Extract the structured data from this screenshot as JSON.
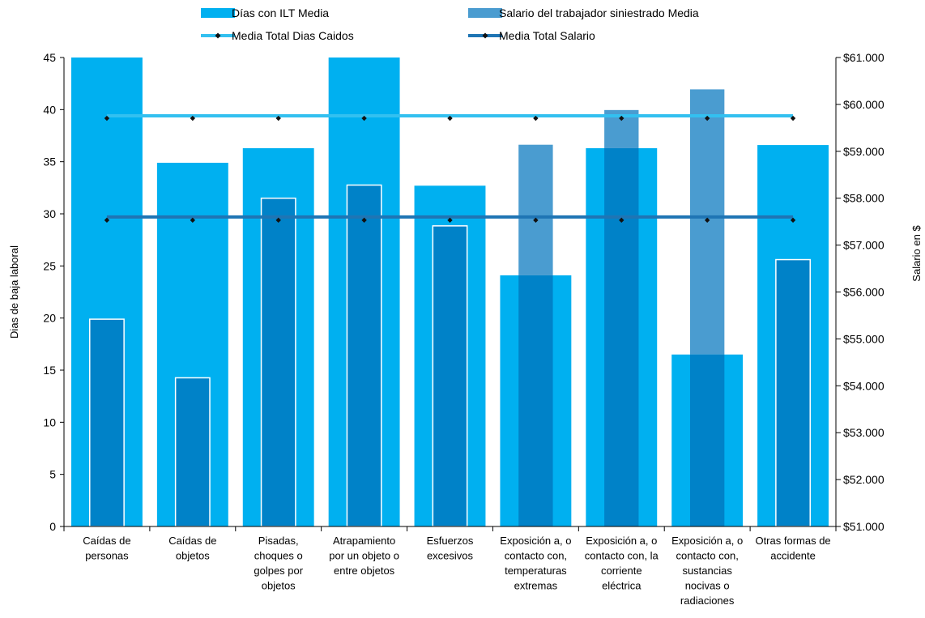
{
  "chart_data": {
    "type": "bar",
    "categories": [
      [
        "Caídas de",
        "personas"
      ],
      [
        "Caídas de",
        "objetos"
      ],
      [
        "Pisadas,",
        "choques o",
        "golpes por",
        "objetos"
      ],
      [
        "Atrapamiento",
        "por un objeto o",
        "entre objetos"
      ],
      [
        "Esfuerzos",
        "excesivos"
      ],
      [
        "Exposición a, o",
        "contacto con,",
        "temperaturas",
        "extremas"
      ],
      [
        "Exposición a, o",
        "contacto con, la",
        "corriente",
        "eléctrica"
      ],
      [
        "Exposición a, o",
        "contacto con,",
        "sustancias",
        "nocivas o",
        "radiaciones"
      ],
      [
        "Otras formas de",
        "accidente"
      ]
    ],
    "series": [
      {
        "name": "Días con ILT  Media",
        "axis": "left",
        "kind": "bar",
        "values": [
          45,
          34.9,
          36.3,
          45,
          32.7,
          24.1,
          36.3,
          16.5,
          36.6
        ],
        "color": "#00b0f0"
      },
      {
        "name": "Salario del trabajador siniestrado Media",
        "axis": "right",
        "kind": "bar",
        "values": [
          55420,
          54170,
          58000,
          58280,
          57410,
          59140,
          59880,
          60320,
          56690
        ],
        "color": "#0082c8"
      },
      {
        "name": "Media Total Dias Caidos",
        "axis": "left",
        "kind": "line",
        "values": [
          39.4,
          39.4,
          39.4,
          39.4,
          39.4,
          39.4,
          39.4,
          39.4,
          39.4
        ],
        "color": "#33c0f0"
      },
      {
        "name": "Media Total Salario",
        "axis": "right",
        "kind": "line",
        "values": [
          57600,
          57600,
          57600,
          57600,
          57600,
          57600,
          57600,
          57600,
          57600
        ],
        "color": "#1f75b4"
      }
    ],
    "y_left": {
      "label": "Dias de baja laboral",
      "min": 0,
      "max": 45,
      "ticks": [
        "0",
        "5",
        "10",
        "15",
        "20",
        "25",
        "30",
        "35",
        "40",
        "45"
      ]
    },
    "y_right": {
      "label": "Salario en $",
      "min": 51000,
      "max": 61000,
      "ticks": [
        "$51.000",
        "$52.000",
        "$53.000",
        "$54.000",
        "$55.000",
        "$56.000",
        "$57.000",
        "$58.000",
        "$59.000",
        "$60.000",
        "$61.000"
      ]
    },
    "legend": {
      "position": "top",
      "items": [
        {
          "label": "Días con ILT  Media",
          "kind": "bar",
          "color": "#00b0f0"
        },
        {
          "label": "Salario del trabajador siniestrado Media",
          "kind": "bar",
          "color": "#4a9cd0"
        },
        {
          "label": "Media Total Dias Caidos",
          "kind": "line",
          "color": "#33c0f0"
        },
        {
          "label": "Media Total Salario",
          "kind": "line",
          "color": "#1f75b4"
        }
      ]
    },
    "grid": false
  }
}
